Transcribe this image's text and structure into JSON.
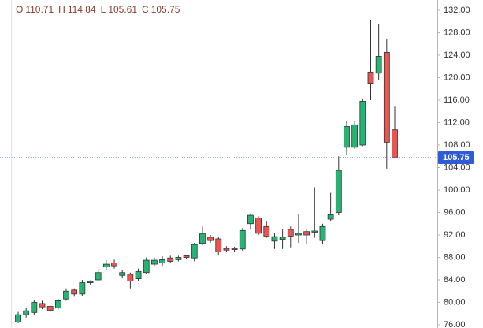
{
  "chart_data": {
    "type": "candlestick",
    "ohlc_labels": [
      "O",
      "H",
      "L",
      "C"
    ],
    "up_color": "#22b573",
    "down_color": "#ef5350",
    "price_line_color": "#2f5cd6",
    "open": [
      76.5,
      77.8,
      78.2,
      79.8,
      79.3,
      79.0,
      80.6,
      82.2,
      81.5,
      83.5,
      84.0,
      86.3,
      87.0,
      84.8,
      85.0,
      84.2,
      85.3,
      86.8,
      87.0,
      87.9,
      87.6,
      88.3,
      87.9,
      90.5,
      91.6,
      91.3,
      89.6,
      89.6,
      89.5,
      94.0,
      95.0,
      93.5,
      90.9,
      91.2,
      93.0,
      92.0,
      92.6,
      92.5,
      91.0,
      94.8,
      96.0,
      107.6,
      107.6,
      108.0,
      121.0,
      120.8,
      124.5,
      110.71
    ],
    "high": [
      78.3,
      79.0,
      80.5,
      80.3,
      79.5,
      80.6,
      82.5,
      82.5,
      84.0,
      83.9,
      86.0,
      87.5,
      87.6,
      85.8,
      85.3,
      86.0,
      88.0,
      88.0,
      88.2,
      88.3,
      88.3,
      88.5,
      90.6,
      93.5,
      92.0,
      91.6,
      90.0,
      89.9,
      93.2,
      95.8,
      95.3,
      94.5,
      92.3,
      93.0,
      93.5,
      95.7,
      93.0,
      100.5,
      94.0,
      99.5,
      106.0,
      112.3,
      112.3,
      116.3,
      130.3,
      129.5,
      126.8,
      114.84
    ],
    "low": [
      76.3,
      77.3,
      77.8,
      78.8,
      78.3,
      78.8,
      80.3,
      81.0,
      81.2,
      83.2,
      83.8,
      85.8,
      86.0,
      84.3,
      82.5,
      83.8,
      85.0,
      86.5,
      86.5,
      87.0,
      87.3,
      87.7,
      87.3,
      90.2,
      90.6,
      88.5,
      89.0,
      89.0,
      89.2,
      93.0,
      92.0,
      91.5,
      89.5,
      89.5,
      89.8,
      90.6,
      90.3,
      91.5,
      90.3,
      94.5,
      95.5,
      106.3,
      107.3,
      107.8,
      116.0,
      119.5,
      103.8,
      105.61
    ],
    "close": [
      77.8,
      78.5,
      80.0,
      79.2,
      78.6,
      80.3,
      82.0,
      81.5,
      83.5,
      83.7,
      85.3,
      86.8,
      86.5,
      85.3,
      83.8,
      85.5,
      87.5,
      87.5,
      87.6,
      87.3,
      88.0,
      88.0,
      90.3,
      92.2,
      91.0,
      89.0,
      89.3,
      89.4,
      92.8,
      95.5,
      92.3,
      91.8,
      91.7,
      91.6,
      91.8,
      92.3,
      92.0,
      92.7,
      93.5,
      95.6,
      103.5,
      111.3,
      111.6,
      115.8,
      119.0,
      123.8,
      108.5,
      105.75
    ],
    "ylim": [
      75.44,
      133.82
    ],
    "yticks": [
      {
        "value": 76,
        "label": "76.00"
      },
      {
        "value": 80,
        "label": "80.00"
      },
      {
        "value": 84,
        "label": "84.00"
      },
      {
        "value": 88,
        "label": "88.00"
      },
      {
        "value": 92,
        "label": "92.00"
      },
      {
        "value": 96,
        "label": "96.00"
      },
      {
        "value": 100,
        "label": "100.00"
      },
      {
        "value": 104,
        "label": "104.00"
      },
      {
        "value": 108,
        "label": "108.00"
      },
      {
        "value": 112,
        "label": "112.00"
      },
      {
        "value": 116,
        "label": "116.00"
      },
      {
        "value": 120,
        "label": "120.00"
      },
      {
        "value": 124,
        "label": "124.00"
      },
      {
        "value": 128,
        "label": "128.00"
      },
      {
        "value": 132,
        "label": "132.00"
      }
    ],
    "price_line": true
  }
}
